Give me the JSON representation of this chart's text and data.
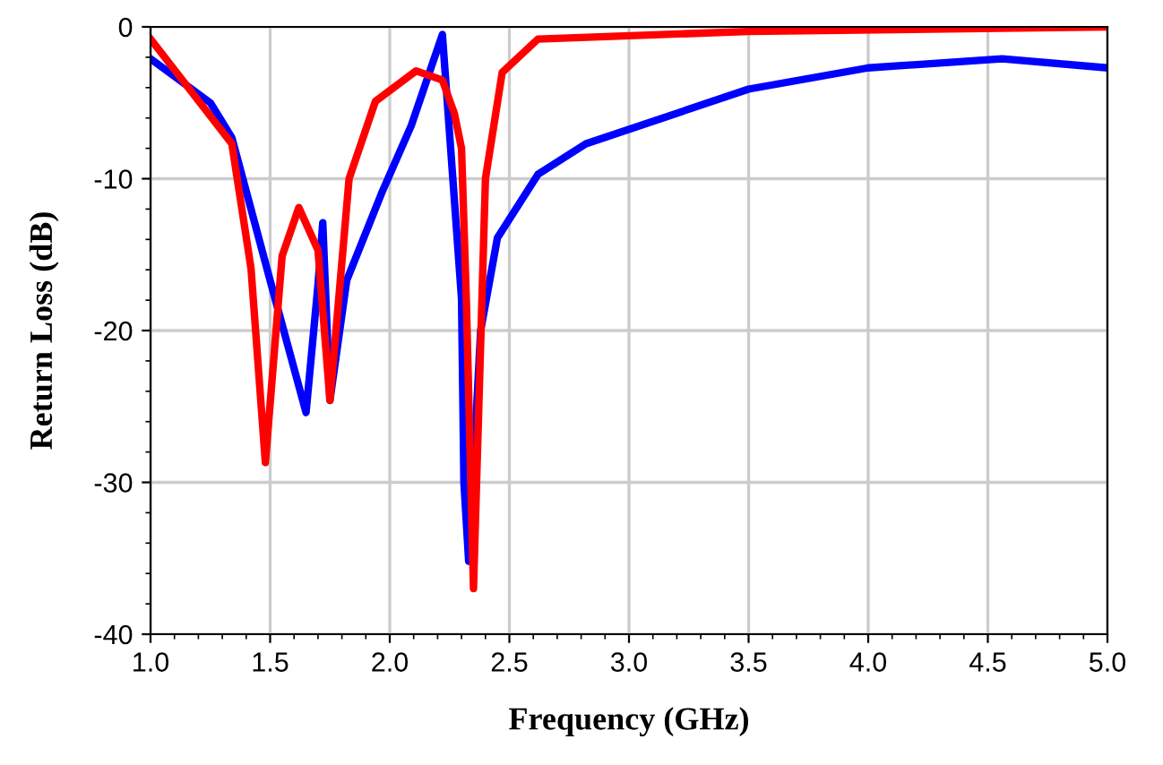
{
  "chart_data": {
    "type": "line",
    "xlabel": "Frequency (GHz)",
    "ylabel": "Return Loss (dB)",
    "xlim": [
      1.0,
      5.0
    ],
    "ylim": [
      -40,
      0
    ],
    "xticks": [
      {
        "value": 1.0,
        "label": "1.0"
      },
      {
        "value": 1.5,
        "label": "1.5"
      },
      {
        "value": 2.0,
        "label": "2.0"
      },
      {
        "value": 2.5,
        "label": "2.5"
      },
      {
        "value": 3.0,
        "label": "3.0"
      },
      {
        "value": 3.5,
        "label": "3.5"
      },
      {
        "value": 4.0,
        "label": "4.0"
      },
      {
        "value": 4.5,
        "label": "4.5"
      },
      {
        "value": 5.0,
        "label": "5.0"
      }
    ],
    "yticks": [
      -40,
      -30,
      -20,
      -10,
      0
    ],
    "grid": true,
    "legend": false,
    "marker": "none",
    "line_style": "solid",
    "series": [
      {
        "color": "#0000ff",
        "x": [
          1.0,
          1.25,
          1.34,
          1.5,
          1.65,
          1.7,
          1.72,
          1.75,
          1.82,
          1.97,
          2.09,
          2.22,
          2.3,
          2.31,
          2.33,
          2.38,
          2.45,
          2.62,
          2.82,
          3.5,
          4.0,
          4.56,
          5.0
        ],
        "values": [
          -2.1,
          -5,
          -7.3,
          -16.7,
          -25.4,
          -17,
          -12.9,
          -24.6,
          -16.7,
          -10.8,
          -6.5,
          -0.5,
          -17.9,
          -30,
          -35.2,
          -20,
          -13.9,
          -9.7,
          -7.7,
          -4.1,
          -2.7,
          -2.1,
          -2.7
        ]
      },
      {
        "color": "#ff0000",
        "x": [
          1.0,
          1.34,
          1.42,
          1.48,
          1.55,
          1.62,
          1.7,
          1.75,
          1.83,
          1.94,
          2.11,
          2.22,
          2.27,
          2.3,
          2.32,
          2.35,
          2.4,
          2.47,
          2.62,
          3.5,
          5.0
        ],
        "values": [
          -0.8,
          -7.7,
          -15.9,
          -28.7,
          -15.1,
          -11.9,
          -14.7,
          -24.6,
          -10,
          -4.9,
          -2.9,
          -3.5,
          -5.7,
          -8,
          -17.9,
          -37,
          -10,
          -3.0,
          -0.8,
          -0.3,
          0
        ]
      }
    ]
  }
}
